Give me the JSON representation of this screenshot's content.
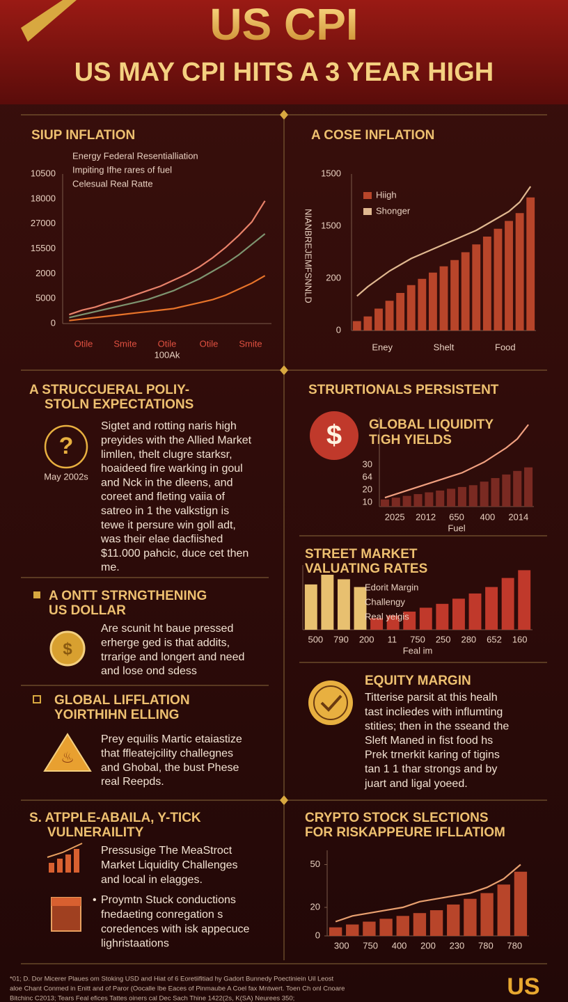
{
  "header": {
    "title": "US CPI",
    "subtitle": "US MAY CPI HITS A 3 YEAR HIGH"
  },
  "panels": [
    {
      "title": [
        "SIUP INFLATION"
      ],
      "chart": {
        "type": "line",
        "ylim": [
          0,
          100
        ],
        "y_labels": [
          "10500",
          "18000",
          "27000",
          "15500",
          "2000",
          "5000",
          "0"
        ],
        "x_labels": [
          "Otile",
          "Smite",
          "Otile",
          "Otile",
          "Smite"
        ],
        "x_note": "100Ak",
        "series": [
          {
            "name": "Energy Federal Resentialliation",
            "color": "#e8826a",
            "kind": "line",
            "values": [
              6,
              9,
              11,
              14,
              16,
              19,
              22,
              25,
              29,
              33,
              38,
              44,
              51,
              59,
              68,
              82
            ]
          },
          {
            "name": "Impiting Ifhe rares of fuel",
            "color": "#7d9470",
            "kind": "line",
            "values": [
              4,
              6,
              8,
              10,
              12,
              14,
              16,
              19,
              22,
              26,
              30,
              35,
              40,
              46,
              53,
              60
            ]
          },
          {
            "name": "Celesual Real Ratte",
            "color": "#e8742a",
            "kind": "line",
            "values": [
              2,
              3,
              4,
              5,
              6,
              7,
              8,
              9,
              10,
              12,
              14,
              16,
              19,
              23,
              27,
              32
            ]
          }
        ]
      }
    },
    {
      "title": [
        "A  COSE INFLATION"
      ],
      "chart": {
        "type": "bar",
        "ylim": [
          0,
          100
        ],
        "y_label": "NIANBREJEMFSNNLD",
        "y_labels": [
          "1500",
          "1500",
          "200",
          "0"
        ],
        "x_labels": [
          "Eney",
          "Shelt",
          "Food"
        ],
        "series": [
          {
            "name": "Hiigh",
            "color": "#b8452a",
            "kind": "bar",
            "values": [
              6,
              9,
              14,
              19,
              24,
              29,
              33,
              37,
              41,
              45,
              50,
              55,
              60,
              65,
              70,
              75,
              85
            ]
          },
          {
            "name": "Shonger",
            "color": "#e0b890",
            "kind": "line",
            "values": [
              22,
              28,
              33,
              38,
              42,
              46,
              49,
              52,
              55,
              58,
              61,
              64,
              68,
              72,
              76,
              82,
              92
            ]
          }
        ]
      }
    },
    {
      "title": [
        "A  STRUCCUERAL POLIY-",
        "STOLN EXPECTATIONS"
      ],
      "icon_caption": "May 2002s",
      "body": [
        "Sigtet and rotting naris high",
        "preyides with the Allied Market",
        "limllen, thelt clugre starksr,",
        "hoaideed fire warking in goul",
        "and Nck in the dleens, and",
        "coreet and fleting vaiia of",
        "satreo in 1 the valkstign is",
        "tewe it persure win goll adt,",
        "was their elae dacfiished",
        "$11.000 pahcic, duce cet then",
        "me."
      ]
    },
    {
      "title": [
        "STRURTIONALS PERSISTENT"
      ],
      "subtitle": [
        "GLOBAL LIQUIDITY",
        "TIGH YIELDS"
      ],
      "chart": {
        "type": "bar",
        "ylim": [
          0,
          100
        ],
        "y_labels": [
          "30",
          "64",
          "20",
          "10"
        ],
        "x_labels": [
          "2025",
          "2012",
          "650",
          "400",
          "2014"
        ],
        "x_note": "Fuel",
        "series": [
          {
            "color": "#7a2a22",
            "kind": "bar",
            "values": [
              8,
              10,
              12,
              14,
              16,
              18,
              20,
              22,
              24,
              28,
              32,
              36,
              40,
              44
            ]
          },
          {
            "color": "#f0a080",
            "kind": "line",
            "values": [
              10,
              14,
              18,
              22,
              26,
              30,
              34,
              38,
              44,
              50,
              58,
              66,
              76,
              92
            ]
          }
        ]
      }
    },
    {
      "title": [
        "A ONTT STRNGTHENING",
        "US DOLLAR"
      ],
      "body": [
        "Are scunit ht baue pressed",
        "erherge ged is that addits,",
        "trrarige and longert and need",
        "and lose ond sdess"
      ]
    },
    {
      "title": [
        "STREET MARKET",
        "VALUATING RATES"
      ],
      "chart": {
        "type": "bar",
        "ylim": [
          0,
          100
        ],
        "legend": [
          "Edorit Margin",
          "Challengy",
          "Real yelgis"
        ],
        "x_labels": [
          "500",
          "790",
          "200",
          "11",
          "750",
          "250",
          "280",
          "652",
          "160"
        ],
        "x_note": "Feal im",
        "series": [
          {
            "color": "#e8c070",
            "kind": "bar",
            "values": [
              70,
              85,
              78,
              66,
              null,
              null,
              null,
              null,
              null,
              null,
              null,
              null,
              null,
              null
            ]
          },
          {
            "color": "#c0392b",
            "kind": "bar",
            "values": [
              null,
              null,
              null,
              null,
              18,
              22,
              28,
              34,
              40,
              48,
              56,
              66,
              80,
              92
            ]
          }
        ]
      }
    },
    {
      "title": [
        "GLOBAL LIFFLATION",
        "YOIRTHIHN ELLING"
      ],
      "body": [
        "Prey equilis Martic etaiastize",
        "that ffleatejcility challegnes",
        "and Ghobal, the bust Phese",
        "real Reepds."
      ]
    },
    {
      "title": [
        "EQUITY MARGIN"
      ],
      "body": [
        "Titterise parsit at this healh",
        "tast incliedes with influmting",
        "stities; then in the sseand the",
        "Sleft Maned in fist food hs",
        "Prek trnerkit karing of tigins",
        "tan 1 1 thar strongs and by",
        "juart and ligal yoeed."
      ]
    },
    {
      "title": [
        "S. ATPPLE-ABAILA, Y-TICK",
        "VULNERAILITY"
      ],
      "items": [
        [
          "Pressusige The MeaStroct",
          "Market Liquidity Challenges",
          "and local in elagges."
        ],
        [
          "Proymtn Stuck conductions",
          "fnedaeting conregation s",
          "coredences with isk appecuce",
          "lighristaations"
        ]
      ]
    },
    {
      "title": [
        "CRYPTO STOCK SLECTIONS",
        "FOR RISKAPPEURE IFLLATIOM"
      ],
      "chart": {
        "type": "bar",
        "ylim": [
          0,
          60
        ],
        "yticks": [
          0,
          20,
          50
        ],
        "x_labels": [
          "300",
          "750",
          "400",
          "200",
          "230",
          "780",
          "780"
        ],
        "series": [
          {
            "color": "#b8452a",
            "kind": "bar",
            "values": [
              6,
              8,
              10,
              12,
              14,
              16,
              18,
              22,
              26,
              30,
              36,
              45
            ]
          },
          {
            "color": "#e8a070",
            "kind": "line",
            "values": [
              10,
              14,
              16,
              18,
              20,
              24,
              26,
              28,
              30,
              34,
              40,
              50
            ]
          }
        ]
      }
    }
  ],
  "footer": {
    "lines": [
      "*01; D. Dor Micerer Plaues om Stoking USD and Hiat of 6 Eoretiifitiad hy Gadort Bunnedy Poectiniein Uil Leost",
      "aloe Chant Conmed in Enitt and of Paror (Oocalle Ibe Eaces of Pinmaube A Coel fax Mntwert. Toen Ch onl Cnoare",
      "Bitchinc C2013; Tears Feal efices Tattes oiners cal Dec Sach Thine 1422(2s, K(SA) Neurees 350;"
    ],
    "logo": "US"
  }
}
